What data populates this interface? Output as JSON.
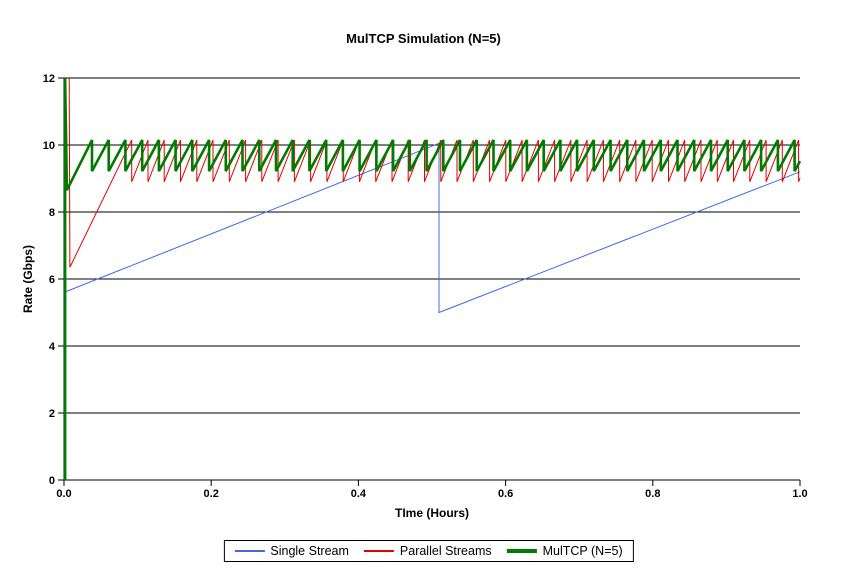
{
  "chart_data": {
    "type": "line",
    "title": "MulTCP Simulation (N=5)",
    "xlabel": "TIme (Hours)",
    "ylabel": "Rate (Gbps)",
    "xlim": [
      0,
      1.0
    ],
    "ylim": [
      0,
      12
    ],
    "x_ticks": [
      0,
      0.2,
      0.4,
      0.6,
      0.8,
      1.0
    ],
    "x_tick_labels": [
      "0.0",
      "0.2",
      "0.4",
      "0.6",
      "0.8",
      "1.0"
    ],
    "y_ticks": [
      0,
      2,
      4,
      6,
      8,
      10,
      12
    ],
    "y_tick_labels": [
      "0",
      "2",
      "4",
      "6",
      "8",
      "10",
      "12"
    ],
    "grid": "horizontal solid black lines at every y tick",
    "legend_position": "bottom-center",
    "axis_color": "#000000",
    "background_color": "#ffffff",
    "series": [
      {
        "name": "Single Stream",
        "color": "#4169E1",
        "width": 1,
        "shape": "piecewise",
        "points": [
          [
            0,
            5.6
          ],
          [
            0.5095,
            10.05
          ],
          [
            0.5095,
            5.0
          ],
          [
            1.0,
            9.2
          ]
        ]
      },
      {
        "name": "Parallel Streams",
        "color": "#E00000",
        "width": 1,
        "shape": "sawtooth",
        "intro": [
          [
            0.007,
            12
          ],
          [
            0.008,
            6.35
          ]
        ],
        "first_peak_x": 0.092,
        "peak": 10.15,
        "trough": 8.9,
        "period": 0.0221,
        "x_end": 1.0
      },
      {
        "name": "MulTCP (N=5)",
        "color": "#007A00",
        "width": 2.6,
        "shape": "sawtooth",
        "intro": [
          [
            0.0015,
            0
          ],
          [
            0.0015,
            12
          ],
          [
            0.004,
            8.65
          ]
        ],
        "first_peak_x": 0.038,
        "peak": 10.15,
        "trough": 9.22,
        "period": 0.02273,
        "x_end": 1.0
      }
    ]
  }
}
